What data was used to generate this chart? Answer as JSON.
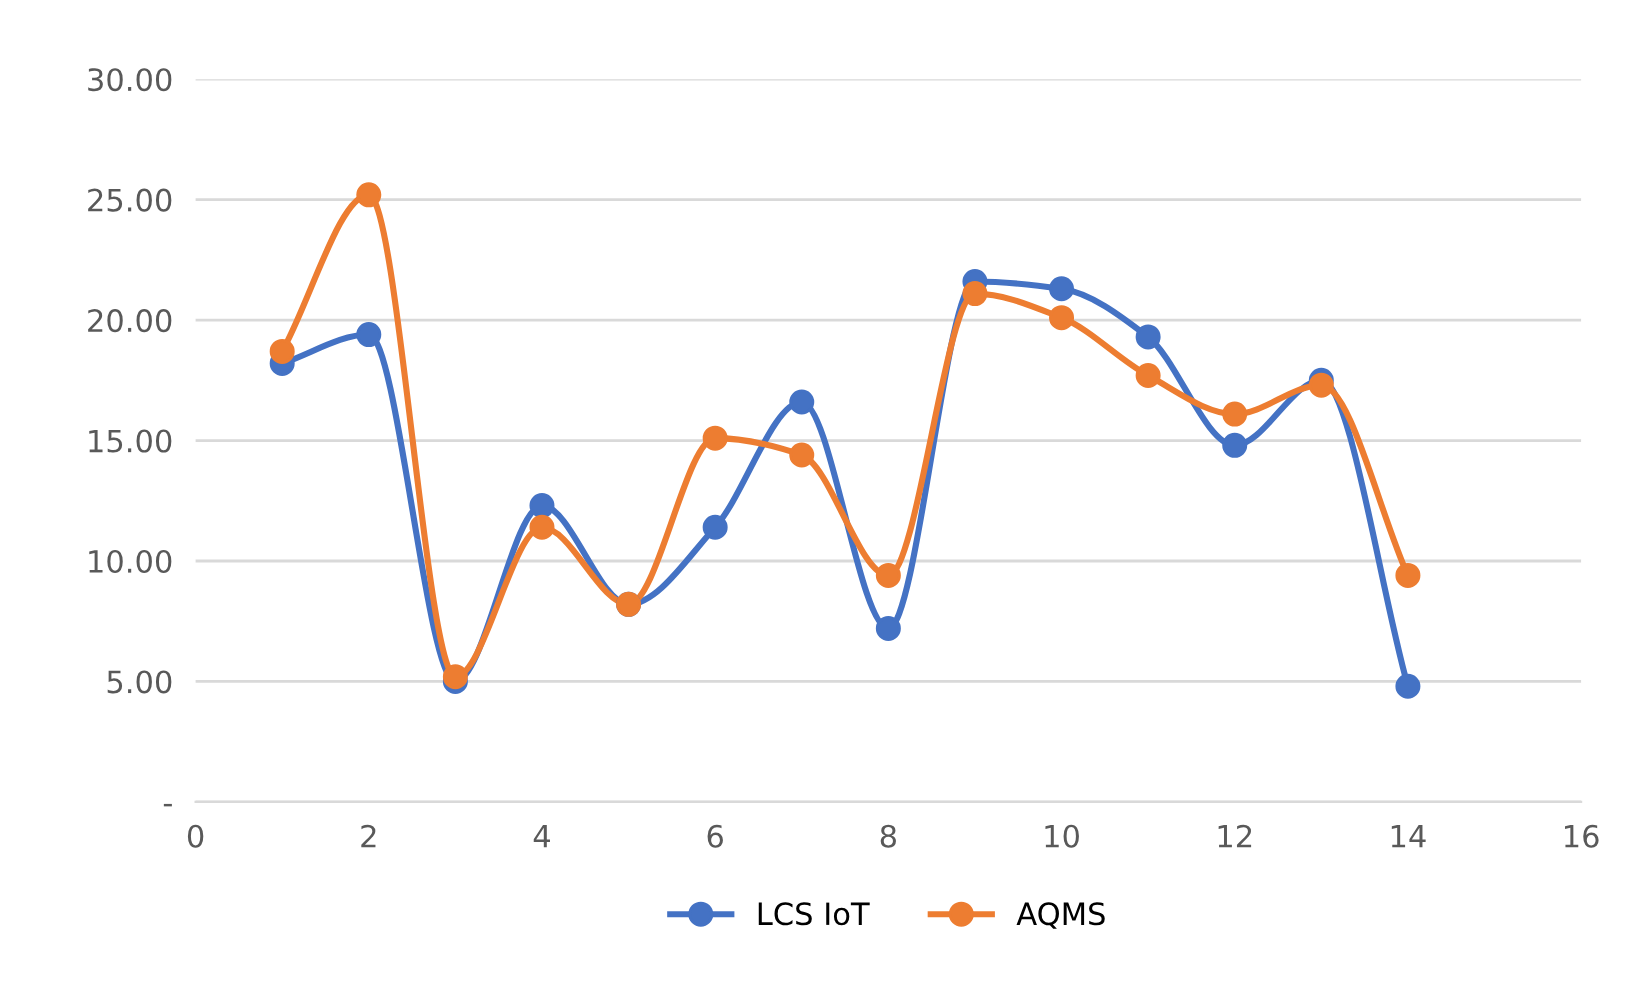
{
  "chart_data": {
    "type": "line",
    "x": [
      1,
      2,
      3,
      4,
      5,
      6,
      7,
      8,
      9,
      10,
      11,
      12,
      13,
      14
    ],
    "series": [
      {
        "name": "LCS IoT",
        "color": "#4472c4",
        "values": [
          18.2,
          19.4,
          5.0,
          12.3,
          8.2,
          11.4,
          16.6,
          7.2,
          21.6,
          21.3,
          19.3,
          14.8,
          17.5,
          4.8
        ]
      },
      {
        "name": "AQMS",
        "color": "#ed7d31",
        "values": [
          18.7,
          25.2,
          5.2,
          11.4,
          8.2,
          15.1,
          14.4,
          9.4,
          21.1,
          20.1,
          17.7,
          16.1,
          17.3,
          9.4
        ]
      }
    ],
    "xlim": [
      0,
      16
    ],
    "xticks": [
      0,
      2,
      4,
      6,
      8,
      10,
      12,
      14,
      16
    ],
    "ylim": [
      0,
      30
    ],
    "yticks": [
      {
        "value": 0,
        "label": "-"
      },
      {
        "value": 5,
        "label": "5.00"
      },
      {
        "value": 10,
        "label": "10.00"
      },
      {
        "value": 15,
        "label": "15.00"
      },
      {
        "value": 20,
        "label": "20.00"
      },
      {
        "value": 25,
        "label": "25.00"
      },
      {
        "value": 30,
        "label": "30.00"
      }
    ],
    "grid": "y",
    "legend": "bottom",
    "marker": "circle",
    "line_style": "solid"
  }
}
